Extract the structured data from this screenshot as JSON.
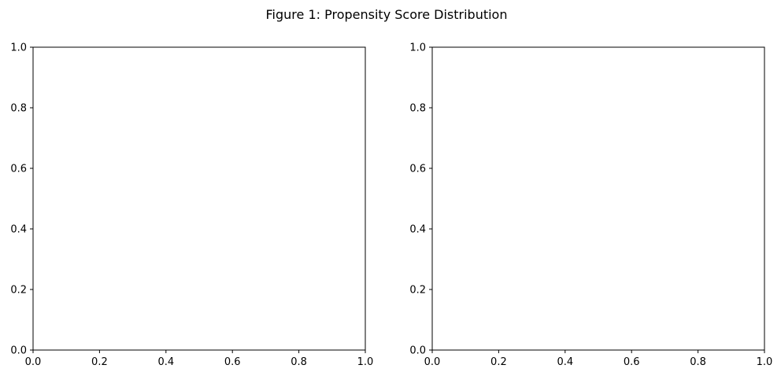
{
  "figure": {
    "title": "Figure 1: Propensity Score Distribution"
  },
  "chart_data": [
    {
      "type": "scatter",
      "title": "",
      "xlabel": "",
      "ylabel": "",
      "xlim": [
        0,
        1
      ],
      "ylim": [
        0,
        1
      ],
      "xticks": [
        "0.0",
        "0.2",
        "0.4",
        "0.6",
        "0.8",
        "1.0"
      ],
      "yticks": [
        "0.0",
        "0.2",
        "0.4",
        "0.6",
        "0.8",
        "1.0"
      ],
      "series": [],
      "grid": false
    },
    {
      "type": "scatter",
      "title": "",
      "xlabel": "",
      "ylabel": "",
      "xlim": [
        0,
        1
      ],
      "ylim": [
        0,
        1
      ],
      "xticks": [
        "0.0",
        "0.2",
        "0.4",
        "0.6",
        "0.8",
        "1.0"
      ],
      "yticks": [
        "0.0",
        "0.2",
        "0.4",
        "0.6",
        "0.8",
        "1.0"
      ],
      "series": [],
      "grid": false
    }
  ]
}
